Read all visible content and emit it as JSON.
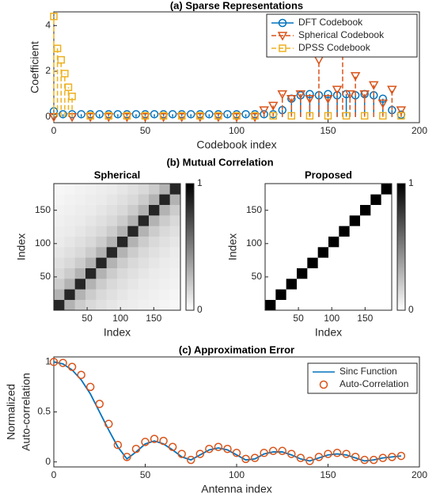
{
  "chart_data": [
    {
      "type": "stem",
      "title": "(a) Sparse Representations",
      "x_label": "Codebook index",
      "y_label": "Coefficient",
      "xlim": [
        0,
        200
      ],
      "ylim": [
        -0.25,
        4.6
      ],
      "xticks": [
        0,
        50,
        100,
        150,
        200
      ],
      "yticks": [
        0,
        2,
        4
      ],
      "grid": false,
      "legend": "upper right",
      "series": [
        {
          "name": "DFT Codebook",
          "color": "#0072bd",
          "marker": "circle",
          "linestyle": "solid",
          "x": [
            0,
            5,
            10,
            15,
            20,
            25,
            30,
            35,
            40,
            45,
            50,
            55,
            60,
            65,
            70,
            75,
            80,
            85,
            90,
            95,
            100,
            105,
            110,
            115,
            120,
            125,
            130,
            135,
            140,
            145,
            150,
            155,
            160,
            165,
            170,
            175,
            180,
            185,
            190
          ],
          "values": [
            0.25,
            0.12,
            0.12,
            0.12,
            0.12,
            0.12,
            0.12,
            0.12,
            0.12,
            0.12,
            0.12,
            0.12,
            0.12,
            0.12,
            0.12,
            0.12,
            0.12,
            0.12,
            0.12,
            0.12,
            0.12,
            0.12,
            0.12,
            0.12,
            0.12,
            0.3,
            0.8,
            0.95,
            1.0,
            0.95,
            1.0,
            0.95,
            1.0,
            0.95,
            1.0,
            0.95,
            0.8,
            0.3,
            0.1
          ]
        },
        {
          "name": "Spherical Codebook",
          "color": "#d95319",
          "marker": "triangle",
          "linestyle": "dashed",
          "x": [
            0,
            10,
            20,
            30,
            40,
            50,
            60,
            70,
            80,
            90,
            100,
            110,
            115,
            120,
            125,
            130,
            135,
            140,
            145,
            150,
            155,
            158,
            162,
            165,
            170,
            175,
            180,
            185,
            190
          ],
          "values": [
            0,
            0,
            0,
            0,
            0,
            0,
            0,
            0,
            0,
            0,
            0,
            0,
            0.3,
            0.5,
            1.0,
            0.8,
            1.0,
            0.8,
            2.5,
            0.8,
            1.2,
            2.8,
            1.0,
            1.8,
            1.0,
            1.4,
            0.6,
            1.2,
            0.3
          ]
        },
        {
          "name": "DPSS Codebook",
          "color": "#edb120",
          "marker": "square",
          "linestyle": "dashed",
          "x": [
            0,
            2,
            4,
            6,
            8,
            10,
            20,
            30,
            40,
            50,
            60,
            70,
            80,
            90,
            100,
            110,
            120,
            130,
            140,
            150,
            160,
            170,
            180,
            190
          ],
          "values": [
            4.4,
            3.0,
            2.5,
            1.9,
            1.3,
            0.9,
            0.05,
            0.05,
            0.05,
            0.05,
            0.05,
            0.05,
            0.05,
            0.05,
            0.05,
            0.05,
            0.05,
            0.05,
            0.05,
            0.05,
            0.05,
            0.05,
            0.05,
            0.05
          ]
        }
      ]
    },
    {
      "type": "heatmap",
      "title": "(b) Mutual Correlation",
      "subtitle": "Spherical",
      "x_label": "Index",
      "y_label": "Index",
      "xlim": [
        0,
        190
      ],
      "ylim": [
        0,
        190
      ],
      "xticks": [
        50,
        100,
        150
      ],
      "yticks": [
        50,
        100,
        150
      ],
      "clim": [
        0,
        1
      ],
      "cticks": [
        0,
        1
      ],
      "matrix": [
        [
          0.85,
          0.3,
          0.2,
          0.15,
          0.12,
          0.1,
          0.08,
          0.07,
          0.06,
          0.05,
          0.04,
          0.03
        ],
        [
          0.3,
          0.85,
          0.3,
          0.2,
          0.15,
          0.12,
          0.1,
          0.08,
          0.07,
          0.06,
          0.05,
          0.04
        ],
        [
          0.2,
          0.3,
          0.85,
          0.3,
          0.2,
          0.15,
          0.12,
          0.1,
          0.08,
          0.07,
          0.06,
          0.05
        ],
        [
          0.15,
          0.2,
          0.3,
          0.85,
          0.3,
          0.2,
          0.15,
          0.12,
          0.1,
          0.08,
          0.07,
          0.06
        ],
        [
          0.12,
          0.15,
          0.2,
          0.3,
          0.85,
          0.3,
          0.2,
          0.15,
          0.12,
          0.1,
          0.08,
          0.07
        ],
        [
          0.1,
          0.12,
          0.15,
          0.2,
          0.3,
          0.85,
          0.3,
          0.2,
          0.15,
          0.12,
          0.1,
          0.08
        ],
        [
          0.08,
          0.1,
          0.12,
          0.15,
          0.2,
          0.3,
          0.85,
          0.3,
          0.2,
          0.15,
          0.12,
          0.1
        ],
        [
          0.07,
          0.08,
          0.1,
          0.12,
          0.15,
          0.2,
          0.3,
          0.85,
          0.3,
          0.2,
          0.15,
          0.12
        ],
        [
          0.06,
          0.07,
          0.08,
          0.1,
          0.12,
          0.15,
          0.2,
          0.3,
          0.85,
          0.3,
          0.2,
          0.15
        ],
        [
          0.05,
          0.06,
          0.07,
          0.08,
          0.1,
          0.12,
          0.15,
          0.2,
          0.3,
          0.85,
          0.3,
          0.2
        ],
        [
          0.04,
          0.05,
          0.06,
          0.07,
          0.08,
          0.1,
          0.12,
          0.15,
          0.2,
          0.3,
          0.85,
          0.3
        ],
        [
          0.03,
          0.04,
          0.05,
          0.06,
          0.07,
          0.08,
          0.1,
          0.12,
          0.15,
          0.2,
          0.3,
          0.85
        ]
      ]
    },
    {
      "type": "heatmap",
      "subtitle": "Proposed",
      "x_label": "Index",
      "y_label": "Index",
      "xlim": [
        0,
        190
      ],
      "ylim": [
        0,
        190
      ],
      "xticks": [
        50,
        100,
        150
      ],
      "yticks": [
        50,
        100,
        150
      ],
      "clim": [
        0,
        1
      ],
      "cticks": [
        0,
        1
      ],
      "matrix": [
        [
          1,
          0,
          0,
          0,
          0,
          0,
          0,
          0,
          0,
          0,
          0,
          0
        ],
        [
          0,
          1,
          0,
          0,
          0,
          0,
          0,
          0,
          0,
          0,
          0,
          0
        ],
        [
          0,
          0,
          1,
          0,
          0,
          0,
          0,
          0,
          0,
          0,
          0,
          0
        ],
        [
          0,
          0,
          0,
          1,
          0,
          0,
          0,
          0,
          0,
          0,
          0,
          0
        ],
        [
          0,
          0,
          0,
          0,
          1,
          0,
          0,
          0,
          0,
          0,
          0,
          0
        ],
        [
          0,
          0,
          0,
          0,
          0,
          1,
          0,
          0,
          0,
          0,
          0,
          0
        ],
        [
          0,
          0,
          0,
          0,
          0,
          0,
          1,
          0,
          0,
          0,
          0,
          0
        ],
        [
          0,
          0,
          0,
          0,
          0,
          0,
          0,
          1,
          0,
          0,
          0,
          0
        ],
        [
          0,
          0,
          0,
          0,
          0,
          0,
          0,
          0,
          1,
          0,
          0,
          0
        ],
        [
          0,
          0,
          0,
          0,
          0,
          0,
          0,
          0,
          0,
          1,
          0,
          0
        ],
        [
          0,
          0,
          0,
          0,
          0,
          0,
          0,
          0,
          0,
          0,
          1,
          0
        ],
        [
          0,
          0,
          0,
          0,
          0,
          0,
          0,
          0,
          0,
          0,
          0,
          1
        ]
      ]
    },
    {
      "type": "line",
      "title": "(c) Approximation Error",
      "x_label": "Antenna index",
      "y_label": [
        "Normalized",
        "Auto-correlation"
      ],
      "xlim": [
        0,
        200
      ],
      "ylim": [
        -0.05,
        1.05
      ],
      "xticks": [
        0,
        50,
        100,
        150,
        200
      ],
      "yticks": [
        0,
        0.5,
        1
      ],
      "grid": false,
      "legend": "upper right",
      "x": [
        0,
        5,
        10,
        15,
        20,
        25,
        30,
        35,
        40,
        45,
        50,
        55,
        60,
        65,
        70,
        75,
        80,
        85,
        90,
        95,
        100,
        105,
        110,
        115,
        120,
        125,
        130,
        135,
        140,
        145,
        150,
        155,
        160,
        165,
        170,
        175,
        180,
        185,
        190
      ],
      "series": [
        {
          "name": "Sinc Function",
          "color": "#0072bd",
          "marker": "none",
          "values": [
            1,
            0.98,
            0.92,
            0.82,
            0.68,
            0.5,
            0.32,
            0.15,
            0.03,
            0.1,
            0.18,
            0.21,
            0.18,
            0.12,
            0.05,
            0.02,
            0.07,
            0.12,
            0.14,
            0.12,
            0.07,
            0.02,
            0.03,
            0.08,
            0.1,
            0.1,
            0.07,
            0.03,
            0.01,
            0.04,
            0.07,
            0.08,
            0.07,
            0.04,
            0.01,
            0.02,
            0.04,
            0.05,
            0.06
          ]
        },
        {
          "name": "Auto-Correlation",
          "color": "#d95319",
          "marker": "circle",
          "values": [
            1,
            0.99,
            0.95,
            0.87,
            0.75,
            0.58,
            0.38,
            0.17,
            0.05,
            0.13,
            0.2,
            0.23,
            0.21,
            0.15,
            0.08,
            0.02,
            0.08,
            0.13,
            0.15,
            0.13,
            0.09,
            0.03,
            0.04,
            0.09,
            0.11,
            0.11,
            0.08,
            0.04,
            0.01,
            0.05,
            0.08,
            0.09,
            0.08,
            0.05,
            0.02,
            0.02,
            0.04,
            0.05,
            0.06
          ]
        }
      ]
    }
  ]
}
